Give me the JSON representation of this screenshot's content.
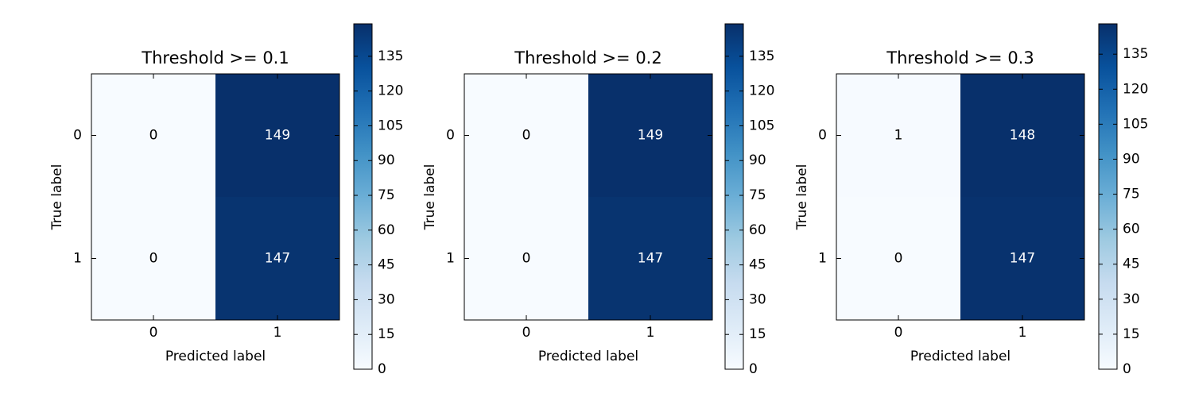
{
  "chart_data": [
    {
      "type": "heatmap",
      "title": "Threshold >= 0.1",
      "xlabel": "Predicted label",
      "ylabel": "True label",
      "x_categories": [
        "0",
        "1"
      ],
      "y_categories": [
        "0",
        "1"
      ],
      "values": [
        [
          0,
          149
        ],
        [
          0,
          147
        ]
      ],
      "colormap": "Blues",
      "clim": [
        0,
        149
      ],
      "colorbar_ticks": [
        0,
        15,
        30,
        45,
        60,
        75,
        90,
        105,
        120,
        135
      ]
    },
    {
      "type": "heatmap",
      "title": "Threshold >= 0.2",
      "xlabel": "Predicted label",
      "ylabel": "True label",
      "x_categories": [
        "0",
        "1"
      ],
      "y_categories": [
        "0",
        "1"
      ],
      "values": [
        [
          0,
          149
        ],
        [
          0,
          147
        ]
      ],
      "colormap": "Blues",
      "clim": [
        0,
        149
      ],
      "colorbar_ticks": [
        0,
        15,
        30,
        45,
        60,
        75,
        90,
        105,
        120,
        135
      ]
    },
    {
      "type": "heatmap",
      "title": "Threshold >= 0.3",
      "xlabel": "Predicted label",
      "ylabel": "True label",
      "x_categories": [
        "0",
        "1"
      ],
      "y_categories": [
        "0",
        "1"
      ],
      "values": [
        [
          1,
          148
        ],
        [
          0,
          147
        ]
      ],
      "colormap": "Blues",
      "clim": [
        0,
        148
      ],
      "colorbar_ticks": [
        0,
        15,
        30,
        45,
        60,
        75,
        90,
        105,
        120,
        135
      ]
    }
  ]
}
